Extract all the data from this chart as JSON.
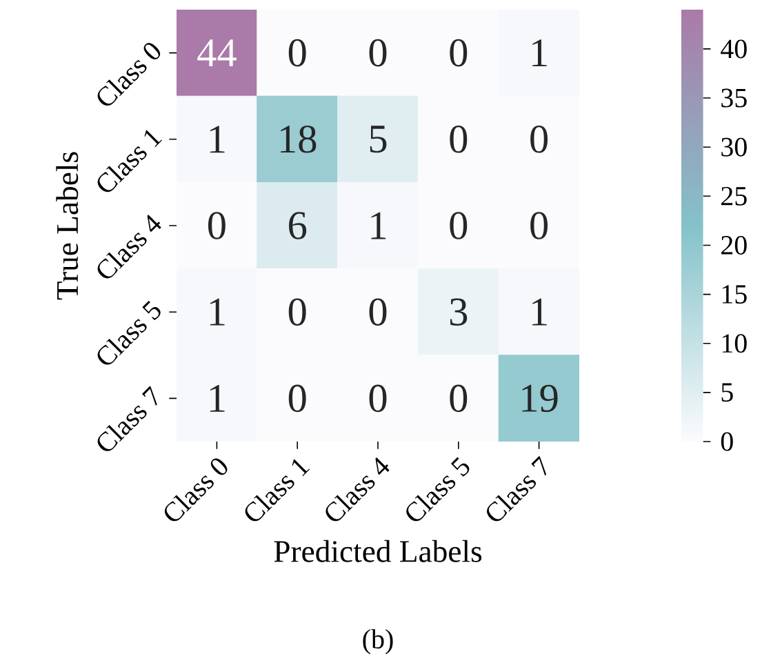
{
  "chart_data": {
    "type": "heatmap",
    "xlabel": "Predicted Labels",
    "ylabel": "True Labels",
    "categories": [
      "Class 0",
      "Class 1",
      "Class 4",
      "Class 5",
      "Class 7"
    ],
    "y_categories": [
      "Class 0",
      "Class 1",
      "Class 4",
      "Class 5",
      "Class 7"
    ],
    "cells": [
      [
        44,
        0,
        0,
        0,
        1
      ],
      [
        1,
        18,
        5,
        0,
        0
      ],
      [
        0,
        6,
        1,
        0,
        0
      ],
      [
        1,
        0,
        0,
        3,
        1
      ],
      [
        1,
        0,
        0,
        0,
        19
      ]
    ],
    "data_labels": true,
    "clim": [
      0,
      44
    ],
    "cticks": [
      0,
      5,
      10,
      15,
      20,
      25,
      30,
      35,
      40
    ],
    "colors": [
      "#fbfbfd",
      "#84c2c9",
      "#aa7aa8"
    ],
    "annotations": [
      "(b)"
    ]
  }
}
